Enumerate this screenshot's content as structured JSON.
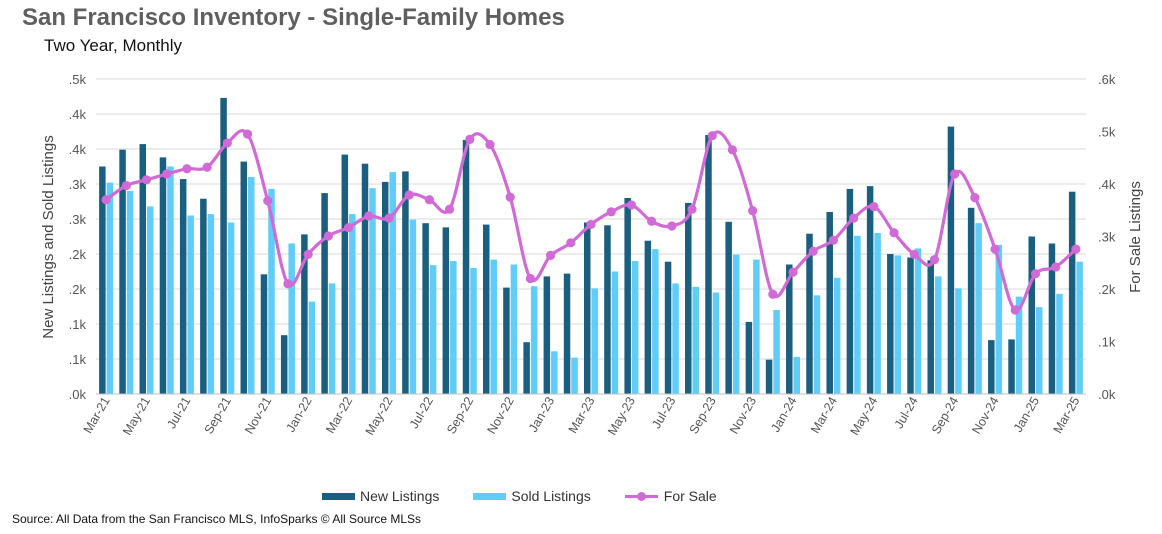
{
  "title": "San Francisco Inventory - Single-Family Homes",
  "subtitle": "Two Year, Monthly",
  "source": "Source: All Data from the San Francisco MLS, InfoSparks © All Source MLSs",
  "colors": {
    "new_listings": "#1a5e80",
    "sold_listings": "#5fcdf7",
    "for_sale": "#d16ad6",
    "grid": "#d9d9d9"
  },
  "chart_data": {
    "type": "bar",
    "categories": [
      "Mar-21",
      "Apr-21",
      "May-21",
      "Jun-21",
      "Jul-21",
      "Aug-21",
      "Sep-21",
      "Oct-21",
      "Nov-21",
      "Dec-21",
      "Jan-22",
      "Feb-22",
      "Mar-22",
      "Apr-22",
      "May-22",
      "Jun-22",
      "Jul-22",
      "Aug-22",
      "Sep-22",
      "Oct-22",
      "Nov-22",
      "Dec-22",
      "Jan-23",
      "Feb-23",
      "Mar-23",
      "Apr-23",
      "May-23",
      "Jun-23",
      "Jul-23",
      "Aug-23",
      "Sep-23",
      "Oct-23",
      "Nov-23",
      "Dec-23",
      "Jan-24",
      "Feb-24",
      "Mar-24",
      "Apr-24",
      "May-24",
      "Jun-24",
      "Jul-24",
      "Aug-24",
      "Sep-24",
      "Oct-24",
      "Nov-24",
      "Dec-24",
      "Jan-25",
      "Feb-25",
      "Mar-25"
    ],
    "x_tick_labels": [
      "Mar-21",
      "May-21",
      "Jul-21",
      "Sep-21",
      "Nov-21",
      "Jan-22",
      "Mar-22",
      "May-22",
      "Jul-22",
      "Sep-22",
      "Nov-22",
      "Jan-23",
      "Mar-23",
      "May-23",
      "Jul-23",
      "Sep-23",
      "Nov-23",
      "Jan-24",
      "Mar-24",
      "May-24",
      "Jul-24",
      "Sep-24",
      "Nov-24",
      "Jan-25",
      "Mar-25"
    ],
    "ylabel": "New Listings and Sold Listings",
    "y2label": "For Sale Listings",
    "ylim": [
      0,
      0.45
    ],
    "y2lim": [
      0,
      0.6
    ],
    "y_ticks": [
      ".0k",
      ".1k",
      ".1k",
      ".2k",
      ".2k",
      ".3k",
      ".3k",
      ".4k",
      ".4k",
      ".5k"
    ],
    "y2_ticks": [
      ".0k",
      ".1k",
      ".2k",
      ".3k",
      ".4k",
      ".5k",
      ".6k"
    ],
    "series": [
      {
        "name": "New Listings",
        "kind": "bar",
        "values": [
          0.325,
          0.349,
          0.357,
          0.338,
          0.307,
          0.279,
          0.423,
          0.332,
          0.171,
          0.084,
          0.228,
          0.287,
          0.342,
          0.329,
          0.303,
          0.318,
          0.244,
          0.238,
          0.363,
          0.242,
          0.152,
          0.074,
          0.168,
          0.172,
          0.245,
          0.241,
          0.28,
          0.219,
          0.189,
          0.273,
          0.37,
          0.246,
          0.103,
          0.049,
          0.185,
          0.229,
          0.26,
          0.293,
          0.297,
          0.2,
          0.195,
          0.191,
          0.382,
          0.266,
          0.077,
          0.078,
          0.225,
          0.215,
          0.289
        ]
      },
      {
        "name": "Sold Listings",
        "kind": "bar",
        "values": [
          0.302,
          0.29,
          0.268,
          0.325,
          0.255,
          0.257,
          0.245,
          0.31,
          0.293,
          0.215,
          0.132,
          0.158,
          0.257,
          0.294,
          0.317,
          0.249,
          0.184,
          0.19,
          0.18,
          0.192,
          0.185,
          0.154,
          0.061,
          0.052,
          0.151,
          0.175,
          0.19,
          0.207,
          0.158,
          0.153,
          0.145,
          0.199,
          0.192,
          0.12,
          0.053,
          0.141,
          0.166,
          0.226,
          0.23,
          0.198,
          0.208,
          0.168,
          0.151,
          0.244,
          0.213,
          0.139,
          0.124,
          0.143,
          0.189
        ]
      },
      {
        "name": "For Sale",
        "kind": "line",
        "values": [
          0.37,
          0.397,
          0.408,
          0.419,
          0.429,
          0.432,
          0.478,
          0.495,
          0.368,
          0.21,
          0.266,
          0.301,
          0.317,
          0.339,
          0.335,
          0.379,
          0.37,
          0.352,
          0.485,
          0.475,
          0.375,
          0.22,
          0.264,
          0.288,
          0.323,
          0.347,
          0.36,
          0.329,
          0.32,
          0.352,
          0.492,
          0.465,
          0.349,
          0.19,
          0.232,
          0.272,
          0.293,
          0.335,
          0.357,
          0.307,
          0.266,
          0.256,
          0.419,
          0.374,
          0.276,
          0.16,
          0.229,
          0.242,
          0.276
        ]
      }
    ],
    "legend_position": "bottom",
    "grid": true
  }
}
